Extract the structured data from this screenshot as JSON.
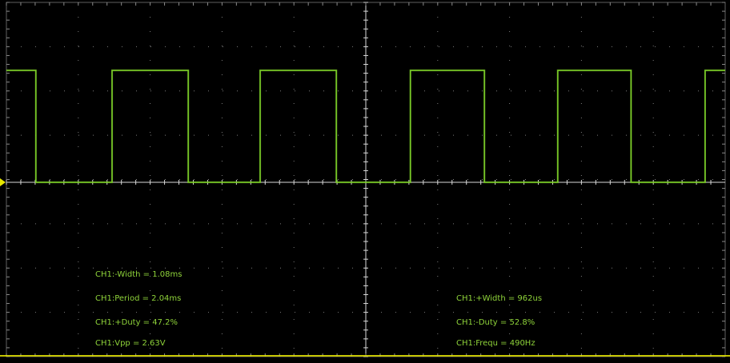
{
  "scope": {
    "colors": {
      "background": "#000000",
      "grid": "#8a8a8a",
      "axis": "#d8d8d8",
      "trace": "#7fd32a",
      "marker": "#e6e600",
      "text": "#8fd43a"
    },
    "trace_timing": {
      "high_level": 2.63,
      "low_level": 0,
      "rising_edges_div": [
        1.47,
        3.53,
        5.62,
        7.67,
        9.72
      ],
      "falling_edges_div": [
        0.41,
        2.53,
        4.59,
        6.65,
        8.69
      ],
      "starts_high": true
    },
    "measurements": {
      "neg_width": "CH1:-Width = 1.08ms",
      "period": "CH1:Period = 2.04ms",
      "pos_duty": "CH1:+Duty = 47.2%",
      "vpp": "CH1:Vpp = 2.63V",
      "pos_width": "CH1:+Width = 962us",
      "neg_duty": "CH1:-Duty = 52.8%",
      "frequency": "CH1:Frequ = 490Hz"
    }
  }
}
